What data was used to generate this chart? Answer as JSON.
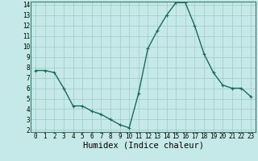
{
  "x": [
    0,
    1,
    2,
    3,
    4,
    5,
    6,
    7,
    8,
    9,
    10,
    11,
    12,
    13,
    14,
    15,
    16,
    17,
    18,
    19,
    20,
    21,
    22,
    23
  ],
  "y": [
    7.7,
    7.7,
    7.5,
    6.0,
    4.3,
    4.3,
    3.8,
    3.5,
    3.0,
    2.5,
    2.2,
    5.5,
    9.8,
    11.5,
    13.0,
    14.2,
    14.2,
    12.0,
    9.3,
    7.5,
    6.3,
    6.0,
    6.0,
    5.2
  ],
  "xlabel": "Humidex (Indice chaleur)",
  "ylim": [
    2,
    14
  ],
  "xlim": [
    -0.5,
    23.5
  ],
  "yticks": [
    2,
    3,
    4,
    5,
    6,
    7,
    8,
    9,
    10,
    11,
    12,
    13,
    14
  ],
  "xticks": [
    0,
    1,
    2,
    3,
    4,
    5,
    6,
    7,
    8,
    9,
    10,
    11,
    12,
    13,
    14,
    15,
    16,
    17,
    18,
    19,
    20,
    21,
    22,
    23
  ],
  "line_color": "#1a6b5a",
  "marker": "+",
  "marker_size": 3,
  "bg_color": "#c5e8e8",
  "grid_color": "#a0c8c8",
  "tick_label_fontsize": 5.5,
  "xlabel_fontsize": 7.5,
  "linewidth": 1.0
}
